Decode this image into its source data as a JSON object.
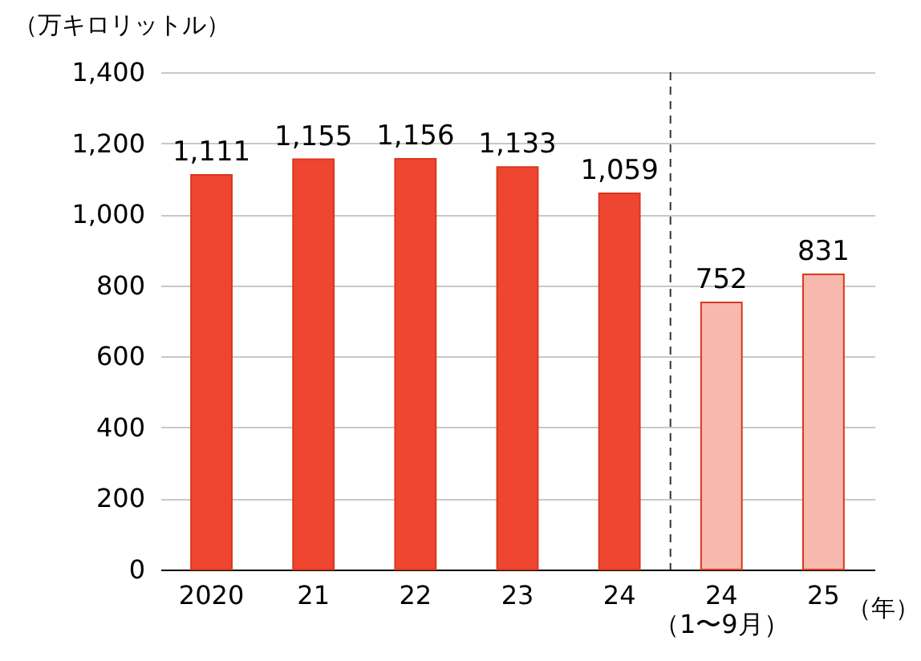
{
  "chart_data": {
    "type": "bar",
    "ylabel": "（万キロリットル）",
    "categories": [
      "2020",
      "21",
      "22",
      "23",
      "24",
      "24\n（1〜9月）",
      "25"
    ],
    "values": [
      1111,
      1155,
      1156,
      1133,
      1059,
      752,
      831
    ],
    "colors": [
      "#ee4630",
      "#ee4630",
      "#ee4630",
      "#ee4630",
      "#ee4630",
      "#f7b9ae",
      "#f7b9ae"
    ],
    "ylim": [
      0,
      1400
    ],
    "yticks": [
      0,
      200,
      400,
      600,
      800,
      {
        "value": 1000,
        "label": "1,000"
      },
      {
        "value": 1200,
        "label": "1,200"
      },
      {
        "value": 1400,
        "label": "1,400"
      }
    ],
    "grid": "y",
    "ref_lines": [
      {
        "axis": "x",
        "value": "24\n（1〜9月）",
        "line_style": "dashed",
        "color": "#333333"
      }
    ],
    "value_labels": [
      "1,111",
      "1,155",
      "1,156",
      "1,133",
      "1,059",
      "752",
      "831"
    ],
    "annotations": [
      "（年）"
    ]
  }
}
